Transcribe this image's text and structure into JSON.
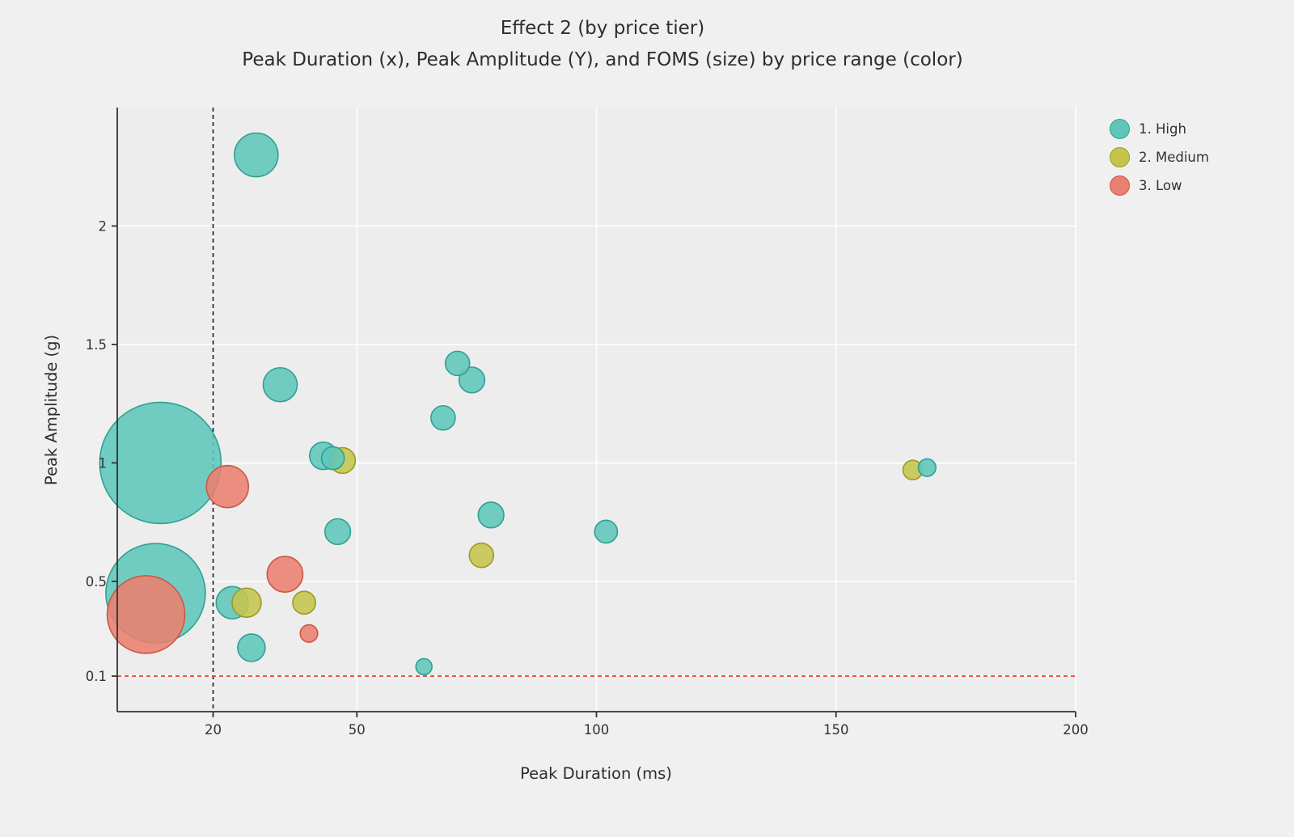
{
  "chart_data": {
    "type": "scatter",
    "subtype": "bubble",
    "title": "Effect 2 (by price tier)",
    "subtitle": "Peak Duration (x), Peak Amplitude (Y), and FOMS (size) by price range (color)",
    "xlabel": "Peak Duration (ms)",
    "ylabel": "Peak Amplitude (g)",
    "xlim": [
      0,
      200
    ],
    "ylim": [
      -0.05,
      2.5
    ],
    "x_ticks": [
      20,
      50,
      100,
      150,
      200
    ],
    "y_ticks": [
      0.1,
      0.5,
      1,
      1.5,
      2
    ],
    "grid": true,
    "gridline_color": "#ffffff",
    "panel_color": "#ededed",
    "figure_color": "#f0f0f0",
    "legend_position": "right-top",
    "size_variable": "FOMS",
    "point_format": [
      "x",
      "y",
      "foms"
    ],
    "reference_lines": [
      {
        "axis": "x",
        "value": 20,
        "style": "dashed",
        "color": "#1a1a1a"
      },
      {
        "axis": "y",
        "value": 0.1,
        "style": "dashed",
        "color": "#e0392b"
      }
    ],
    "series": [
      {
        "name": "1. High",
        "fill": "#5fc7b9",
        "stroke": "#2fa092",
        "points": [
          [
            29,
            2.3,
            81
          ],
          [
            34,
            1.33,
            49
          ],
          [
            71,
            1.42,
            25
          ],
          [
            74,
            1.35,
            28
          ],
          [
            68,
            1.19,
            25
          ],
          [
            9,
            1.0,
            625
          ],
          [
            43,
            1.03,
            32
          ],
          [
            45,
            1.02,
            22
          ],
          [
            46,
            0.71,
            28
          ],
          [
            78,
            0.78,
            28
          ],
          [
            102,
            0.71,
            22
          ],
          [
            8,
            0.45,
            420
          ],
          [
            24,
            0.41,
            44
          ],
          [
            28,
            0.22,
            32
          ],
          [
            64,
            0.14,
            11
          ],
          [
            169,
            0.98,
            13
          ]
        ]
      },
      {
        "name": "2. Medium",
        "fill": "#c5c54b",
        "stroke": "#9a9a26",
        "points": [
          [
            47,
            1.01,
            28
          ],
          [
            76,
            0.61,
            25
          ],
          [
            27,
            0.41,
            36
          ],
          [
            39,
            0.41,
            22
          ],
          [
            166,
            0.97,
            16
          ]
        ]
      },
      {
        "name": "3. Low",
        "fill": "#ea8070",
        "stroke": "#cc5847",
        "points": [
          [
            23,
            0.9,
            75
          ],
          [
            35,
            0.53,
            54
          ],
          [
            40,
            0.28,
            13
          ],
          [
            6,
            0.36,
            256
          ]
        ]
      }
    ]
  }
}
